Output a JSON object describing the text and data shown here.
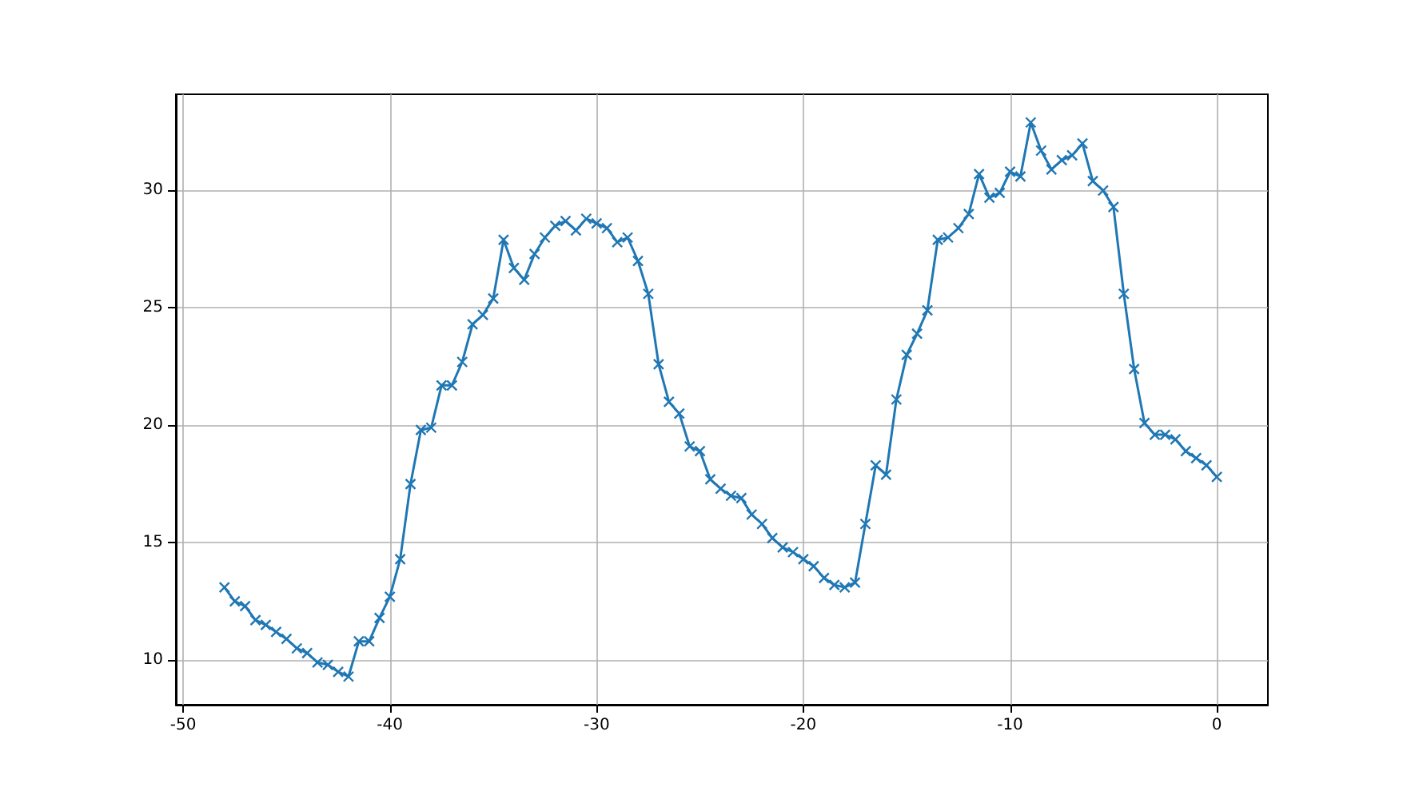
{
  "chart_data": {
    "type": "line",
    "marker": "cross",
    "grid": true,
    "line_style": "solid",
    "xlim": [
      -50.35,
      2.47
    ],
    "xticks": [
      -50,
      -40,
      -30,
      -20,
      -10,
      0
    ],
    "ylim": [
      8.1,
      34.1
    ],
    "yticks": [
      10,
      15,
      20,
      25,
      30
    ],
    "series": [
      {
        "color": "#1f77b4",
        "x": [
          -48,
          -47.5,
          -47,
          -46.5,
          -46,
          -45.5,
          -45,
          -44.5,
          -44,
          -43.5,
          -43,
          -42.5,
          -42,
          -41.5,
          -41,
          -40.5,
          -40,
          -39.5,
          -39,
          -38.5,
          -38,
          -37.5,
          -37,
          -36.5,
          -36,
          -35.5,
          -35,
          -34.5,
          -34,
          -33.5,
          -33,
          -32.5,
          -32,
          -31.5,
          -31,
          -30.5,
          -30,
          -29.5,
          -29,
          -28.5,
          -28,
          -27.5,
          -27,
          -26.5,
          -26,
          -25.5,
          -25,
          -24.5,
          -24,
          -23.5,
          -23,
          -22.5,
          -22,
          -21.5,
          -21,
          -20.5,
          -20,
          -19.5,
          -19,
          -18.5,
          -18,
          -17.5,
          -17,
          -16.5,
          -16,
          -15.5,
          -15,
          -14.5,
          -14,
          -13.5,
          -13,
          -12.5,
          -12,
          -11.5,
          -11,
          -10.5,
          -10,
          -9.5,
          -9,
          -8.5,
          -8,
          -7.5,
          -7,
          -6.5,
          -6,
          -5.5,
          -5,
          -4.5,
          -4,
          -3.5,
          -3,
          -2.5,
          -2,
          -1.5,
          -1,
          -0.5,
          0
        ],
        "values": [
          13.1,
          12.5,
          12.3,
          11.7,
          11.5,
          11.2,
          10.9,
          10.5,
          10.3,
          9.9,
          9.8,
          9.5,
          9.3,
          10.8,
          10.8,
          11.8,
          12.7,
          14.3,
          17.5,
          19.8,
          19.9,
          21.7,
          21.7,
          22.7,
          24.3,
          24.7,
          25.4,
          27.9,
          26.7,
          26.2,
          27.3,
          28.0,
          28.5,
          28.7,
          28.3,
          28.8,
          28.6,
          28.4,
          27.8,
          28.0,
          27.0,
          25.6,
          22.6,
          21.0,
          20.5,
          19.1,
          18.9,
          17.7,
          17.3,
          17.0,
          16.9,
          16.2,
          15.8,
          15.2,
          14.8,
          14.6,
          14.3,
          14.0,
          13.5,
          13.2,
          13.1,
          13.3,
          15.8,
          18.3,
          17.9,
          21.1,
          23.0,
          23.9,
          24.9,
          27.9,
          28.0,
          28.4,
          29.0,
          30.7,
          29.7,
          29.9,
          30.8,
          30.6,
          32.9,
          31.7,
          30.9,
          31.3,
          31.5,
          32.0,
          30.4,
          30.0,
          29.3,
          25.6,
          22.4,
          20.1,
          19.6,
          19.6,
          19.4,
          18.9,
          18.6,
          18.3,
          17.8
        ]
      }
    ]
  }
}
